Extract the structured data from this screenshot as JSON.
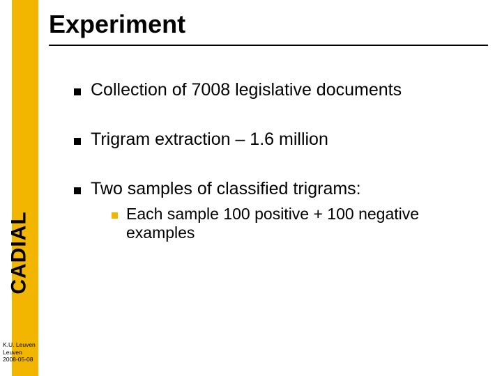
{
  "colors": {
    "accent": "#f2b600",
    "text": "#000000",
    "background": "#ffffff"
  },
  "title": "Experiment",
  "logo": "CADIAL",
  "bullets": [
    {
      "text": "Collection of 7008 legislative documents"
    },
    {
      "text": "Trigram extraction – 1.6 million"
    },
    {
      "text": "Two samples of classified trigrams:",
      "sub": [
        {
          "text": "Each sample 100 positive  + 100 negative examples"
        }
      ]
    }
  ],
  "footer": {
    "line1": "K.U. Leuven",
    "line2": "Leuven",
    "line3": "2008-05-08"
  }
}
